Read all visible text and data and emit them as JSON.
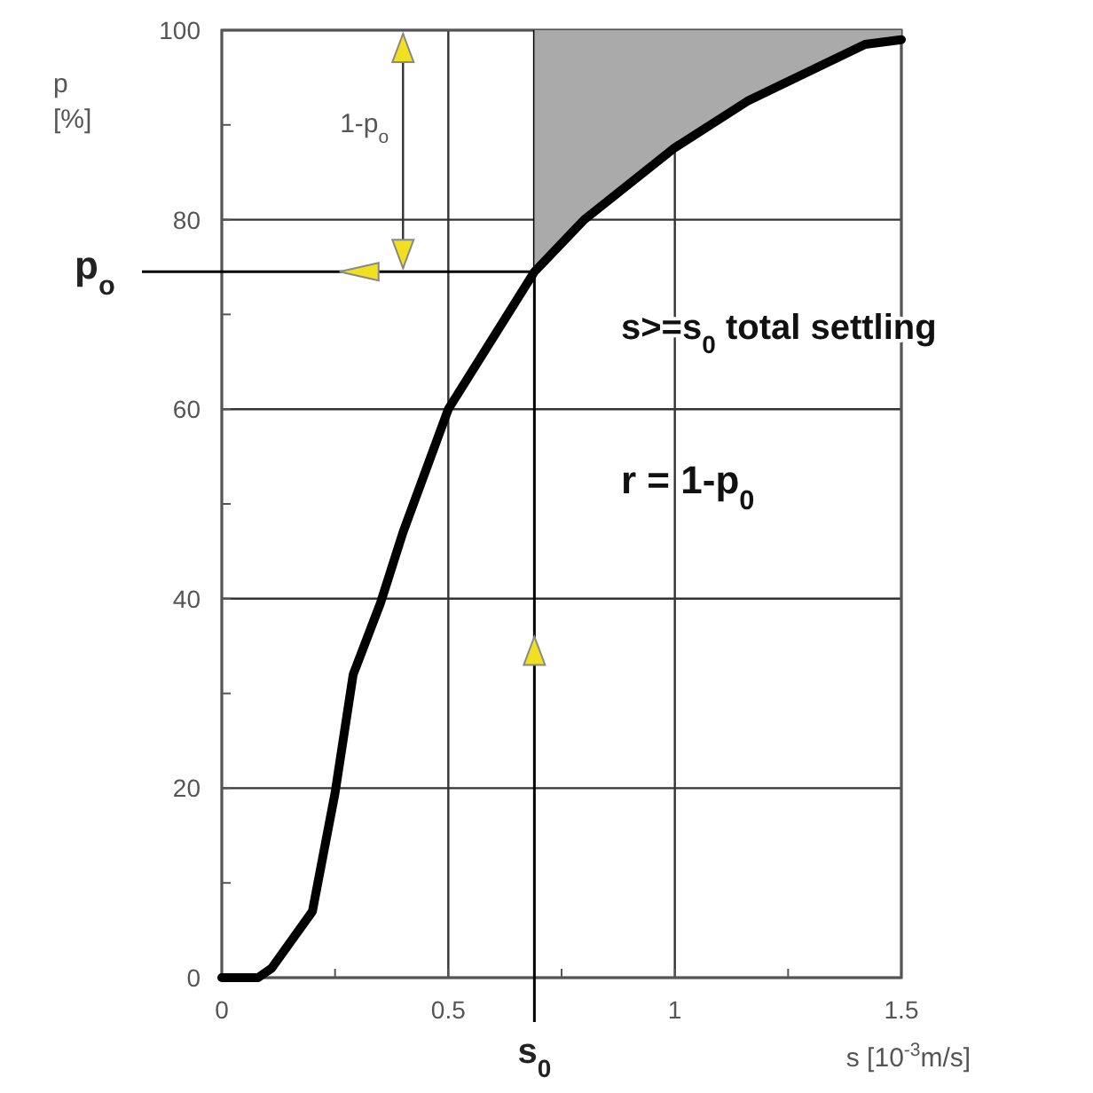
{
  "chart_data": {
    "type": "line",
    "xlabel": "s [10$^{-3}$m/s]",
    "ylabel": "p [%]",
    "x": [
      0,
      0.08,
      0.11,
      0.2,
      0.25,
      0.29,
      0.35,
      0.4,
      0.5,
      0.69,
      0.8,
      1.0,
      1.16,
      1.42,
      1.5
    ],
    "series": [
      {
        "color": "#000000",
        "values": [
          0,
          0,
          1,
          7,
          19.5,
          32,
          39.5,
          47,
          60,
          74.5,
          80,
          87.6,
          92.5,
          98.5,
          99
        ],
        "lower": [
          null,
          null,
          null,
          null,
          null,
          null,
          null,
          null,
          null,
          74.5,
          80,
          87.6,
          92.5,
          98.5,
          99
        ],
        "upper": [
          null,
          null,
          null,
          null,
          null,
          null,
          null,
          null,
          null,
          100,
          100,
          100,
          100,
          100,
          100
        ]
      }
    ],
    "xlim": [
      0,
      1.5
    ],
    "ylim": [
      0,
      100
    ],
    "xticks": [
      0,
      0.5,
      1,
      1.5,
      {
        "value": 0.25,
        "label": null
      },
      {
        "value": 0.75,
        "label": null
      },
      {
        "value": 1.25,
        "label": null
      }
    ],
    "yticks": [
      0,
      20,
      40,
      60,
      80,
      100,
      {
        "value": 10,
        "label": null
      },
      {
        "value": 30,
        "label": null
      },
      {
        "value": 50,
        "label": null
      },
      {
        "value": 70,
        "label": null
      },
      {
        "value": 90,
        "label": null
      }
    ],
    "grid": true,
    "marker": "none",
    "line_style": "solid",
    "ref_lines": [
      {
        "axis": "x",
        "value": 0.69,
        "label": "s$_{0}$",
        "color": "#000000"
      },
      {
        "axis": "y",
        "value": 74.5,
        "label": "p$_{o}$",
        "color": "#000000"
      }
    ],
    "annotations": [
      "1-p$_{o}$",
      "s>=s$_{0}$ total settling",
      "r = 1-p$_{0}$"
    ]
  }
}
